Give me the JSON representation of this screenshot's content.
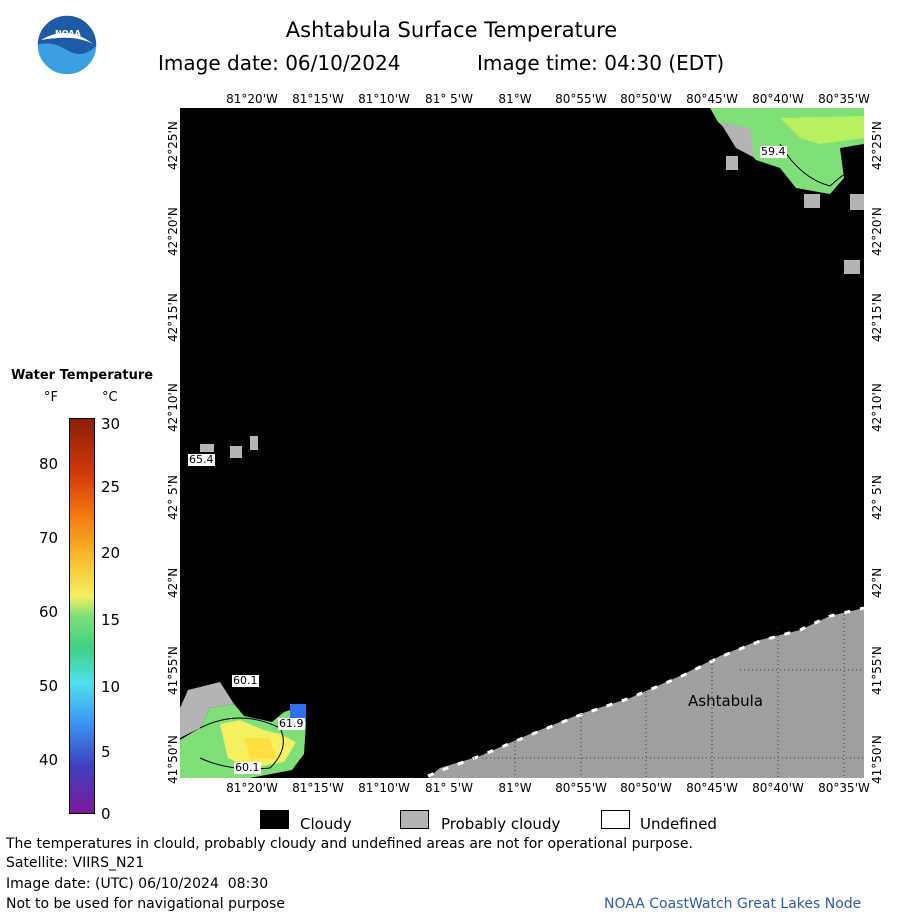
{
  "header": {
    "title": "Ashtabula Surface Temperature",
    "image_date": "Image date: 06/10/2024",
    "image_time": "Image time: 04:30 (EDT)"
  },
  "logo": {
    "text": "NOAA"
  },
  "axes": {
    "lon_labels": [
      "81°20'W",
      "81°15'W",
      "81°10'W",
      "81° 5'W",
      "81°W",
      "80°55'W",
      "80°50'W",
      "80°45'W",
      "80°40'W",
      "80°35'W"
    ],
    "lat_labels": [
      "42°25'N",
      "42°20'N",
      "42°15'N",
      "42°10'N",
      "42° 5'N",
      "42°N",
      "41°55'N",
      "41°50'N"
    ]
  },
  "legend": {
    "title": "Water Temperature",
    "unit_f": "°F",
    "unit_c": "°C",
    "f_ticks": [
      "80",
      "70",
      "60",
      "50",
      "40"
    ],
    "c_ticks": [
      "30",
      "25",
      "20",
      "15",
      "10",
      "5",
      "0"
    ]
  },
  "map": {
    "place_label": "Ashtabula",
    "contour_labels": [
      "59.4",
      "65.4",
      "60.1",
      "61.9",
      "60.1"
    ]
  },
  "key": {
    "cloudy": "Cloudy",
    "probably_cloudy": "Probably cloudy",
    "undefined": "Undefined",
    "colors": {
      "cloudy": "#000000",
      "probably_cloudy": "#b4b4b4",
      "undefined": "#ffffff",
      "land": "#a0a0a0"
    }
  },
  "footer": {
    "note": "The temperatures in clould, probably cloudy and undefined areas are not for operational purpose.",
    "satellite": "Satellite: VIIRS_N21",
    "utc_date": "Image date: (UTC) 06/10/2024  08:30",
    "navigation": "Not to be used for navigational purpose",
    "credit": "NOAA CoastWatch Great Lakes Node"
  }
}
